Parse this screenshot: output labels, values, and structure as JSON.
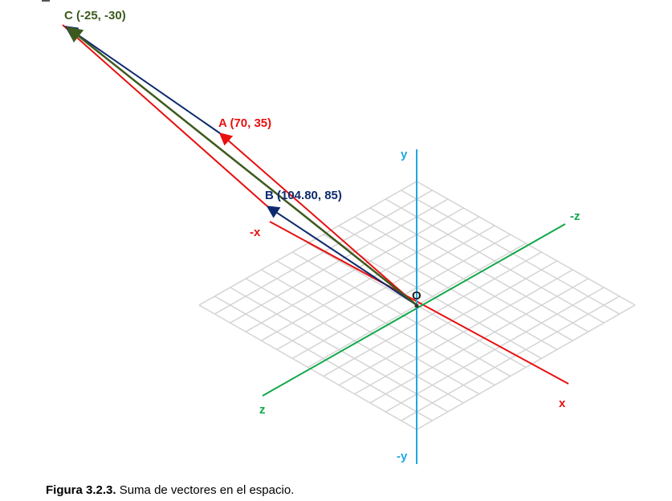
{
  "axes": {
    "x": "x",
    "neg_x": "-x",
    "y": "y",
    "neg_y": "-y",
    "z": "z",
    "neg_z": "-z",
    "origin": "O"
  },
  "vectors": {
    "a": "A (70, 35)",
    "b": "B (104.80, 85)",
    "c": "C (-25, -30)"
  },
  "caption": {
    "number": "Figura 3.2.3.",
    "text": " Suma de vectores en el espacio."
  },
  "colors": {
    "x_axis": "#e81010",
    "y_axis": "#1fa8e0",
    "z_axis": "#12a84a",
    "vector_a": "#e81010",
    "vector_b": "#0e2a6e",
    "vector_c": "#3d5a1e",
    "grid": "#d4d4d4"
  }
}
